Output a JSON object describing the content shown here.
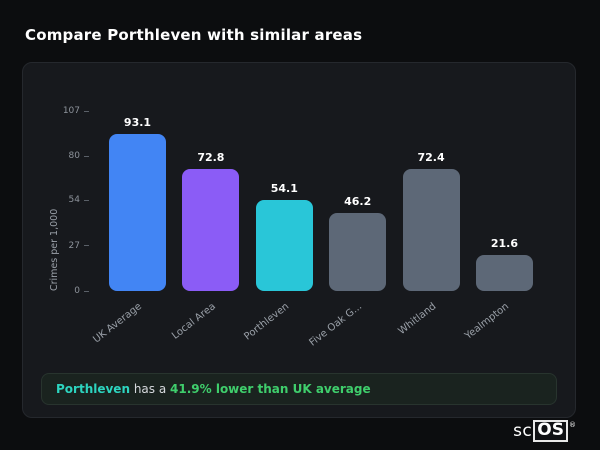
{
  "page": {
    "title": "Compare Porthleven with similar areas"
  },
  "chart_data": {
    "type": "bar",
    "categories": [
      "UK Average",
      "Local Area",
      "Porthleven",
      "Five Oak G...",
      "Whitland",
      "Yealmpton"
    ],
    "values": [
      93.1,
      72.8,
      54.1,
      46.2,
      72.4,
      21.6
    ],
    "value_labels": [
      "93.1",
      "72.8",
      "54.1",
      "46.2",
      "72.4",
      "21.6"
    ],
    "bar_colors": [
      "#4285f4",
      "#8b5cf6",
      "#29c6d8",
      "#5d6877",
      "#5d6877",
      "#5d6877"
    ],
    "title": "",
    "xlabel": "",
    "ylabel": "Crimes per 1,000",
    "yticks": [
      0,
      27,
      54,
      80,
      107
    ],
    "ylim": [
      0,
      107
    ],
    "grid": false,
    "legend": false
  },
  "summary": {
    "highlight": "Porthleven",
    "middle": " has a ",
    "stat": "41.9% lower than UK average",
    "highlight_color": "#2dd4bf",
    "stat_color": "#3fce6c"
  },
  "logo": {
    "prefix": "sc",
    "boxed": "OS",
    "reg": "®"
  }
}
